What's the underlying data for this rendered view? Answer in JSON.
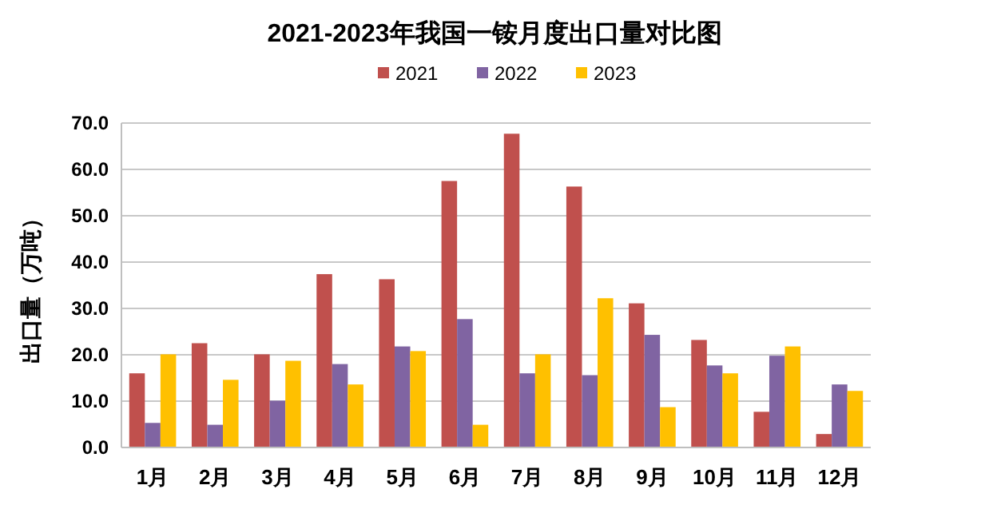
{
  "chart_data": {
    "type": "bar",
    "title": "2021-2023年我国一铵月度出口量对比图",
    "ylabel": "出口量（万吨）",
    "categories": [
      "1月",
      "2月",
      "3月",
      "4月",
      "5月",
      "6月",
      "7月",
      "8月",
      "9月",
      "10月",
      "11月",
      "12月"
    ],
    "series": [
      {
        "name": "2021",
        "color": "#c0504d",
        "values": [
          16.0,
          22.5,
          20.1,
          37.4,
          36.3,
          57.5,
          67.7,
          56.3,
          31.1,
          23.2,
          7.7,
          2.9
        ]
      },
      {
        "name": "2022",
        "color": "#8064a2",
        "values": [
          5.3,
          4.9,
          10.1,
          18.0,
          21.8,
          27.7,
          16.0,
          15.6,
          24.3,
          17.7,
          19.8,
          13.6
        ]
      },
      {
        "name": "2023",
        "color": "#ffc000",
        "values": [
          20.1,
          14.6,
          18.7,
          13.6,
          20.8,
          4.9,
          20.1,
          32.2,
          8.7,
          16.0,
          21.8,
          12.2
        ]
      }
    ],
    "ylim": [
      0,
      70
    ],
    "yticks": [
      {
        "value": 0,
        "label": "0.0"
      },
      {
        "value": 10,
        "label": "10.0"
      },
      {
        "value": 20,
        "label": "20.0"
      },
      {
        "value": 30,
        "label": "30.0"
      },
      {
        "value": 40,
        "label": "40.0"
      },
      {
        "value": 50,
        "label": "50.0"
      },
      {
        "value": 60,
        "label": "60.0"
      },
      {
        "value": 70,
        "label": "70.0"
      }
    ],
    "grid": "y",
    "legend": "top"
  }
}
